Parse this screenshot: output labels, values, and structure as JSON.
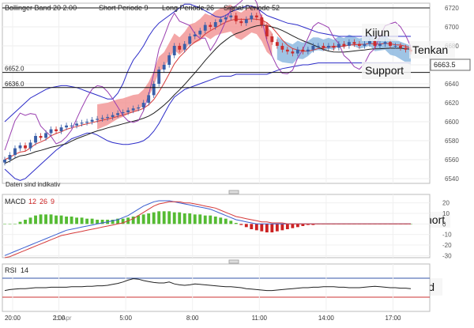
{
  "main_panel": {
    "header": {
      "bb": "Bollinger Band 20 2.00",
      "short": "Short Periode 9",
      "long": "Long Periode 26",
      "signal": "Signal Periode 52"
    },
    "note": "Daten sind indikativ",
    "current_price": "6663.5",
    "level_labels": [
      "6652.0",
      "6636.0"
    ]
  },
  "macd_panel": {
    "title": "MACD",
    "params": [
      "12",
      "26",
      "9"
    ]
  },
  "rsi_panel": {
    "title": "RSI",
    "period": "14"
  },
  "annotations": {
    "kijun": "Kijun",
    "tenkan": "Tenkan",
    "support": "Support",
    "short": "short",
    "trend": "Trend"
  },
  "x_axis": {
    "date_label": "11 Apr",
    "ticks": [
      "2:00",
      "5:00",
      "8:00",
      "11:00",
      "14:00",
      "17:00",
      "20:00"
    ]
  },
  "colors": {
    "bull": "#3a5fa8",
    "bear": "#cc2d2d",
    "cloud_bull": "#f08a8a",
    "cloud_bear": "#7fb0dc",
    "bollinger": "#2b2bc8",
    "ma_short": "#d63a3a",
    "ma_long": "#222222",
    "signal": "#9a3fb0",
    "macd_line": "#3a5fd0",
    "macd_signal": "#d63a3a",
    "rsi_line": "#222222",
    "rsi_band": "#cc3333"
  },
  "chart_data": [
    {
      "type": "candlestick",
      "ylim": [
        6535,
        6725
      ],
      "yticks": [
        6540,
        6560,
        6580,
        6600,
        6620,
        6640,
        6660,
        6680,
        6700,
        6720
      ],
      "levels": [
        6652,
        6636
      ],
      "x": [
        1,
        2,
        3,
        4,
        5,
        6,
        7,
        8,
        9,
        10,
        11,
        12,
        13,
        14,
        15,
        16,
        17,
        18,
        19,
        20,
        21,
        22,
        23,
        24,
        25,
        26,
        27,
        28,
        29,
        30,
        31,
        32,
        33,
        34,
        35,
        36,
        37,
        38,
        39,
        40,
        41,
        42,
        43,
        44,
        45,
        46,
        47,
        48,
        49,
        50,
        51,
        52,
        53,
        54,
        55,
        56,
        57,
        58,
        59,
        60,
        61,
        62,
        63,
        64,
        65,
        66,
        67,
        68,
        69,
        70,
        71,
        72,
        73,
        74,
        75,
        76,
        77,
        78,
        79,
        80
      ],
      "close": [
        6560,
        6565,
        6572,
        6575,
        6572,
        6578,
        6585,
        6583,
        6588,
        6592,
        6590,
        6594,
        6596,
        6596,
        6598,
        6599,
        6600,
        6602,
        6603,
        6604,
        6605,
        6607,
        6609,
        6610,
        6612,
        6614,
        6615,
        6620,
        6628,
        6640,
        6655,
        6660,
        6670,
        6680,
        6676,
        6682,
        6690,
        6692,
        6696,
        6702,
        6700,
        6705,
        6708,
        6710,
        6712,
        6706,
        6704,
        6708,
        6712,
        6710,
        6702,
        6690,
        6684,
        6680,
        6676,
        6674,
        6672,
        6676,
        6674,
        6676,
        6680,
        6680,
        6678,
        6680,
        6678,
        6682,
        6680,
        6684,
        6682,
        6680,
        6682,
        6685,
        6680,
        6682,
        6684,
        6680,
        6680,
        6678,
        6676,
        6674
      ],
      "bollinger_upper": [
        6600,
        6605,
        6610,
        6615,
        6620,
        6625,
        6628,
        6631,
        6634,
        6636,
        6637,
        6638,
        6638,
        6637,
        6636,
        6634,
        6632,
        6630,
        6628,
        6626,
        6624,
        6624,
        6630,
        6640,
        6654,
        6665,
        6672,
        6680,
        6690,
        6698,
        6704,
        6708,
        6712,
        6716,
        6720,
        6724,
        6724,
        6722,
        6720,
        6717,
        6714,
        6711,
        6710,
        6712,
        6716,
        6718,
        6720,
        6722,
        6722,
        6720,
        6716,
        6712,
        6710,
        6708,
        6706,
        6704,
        6703,
        6702,
        6700,
        6698,
        6696,
        6694,
        6693,
        6692,
        6691,
        6690,
        6690,
        6690,
        6690,
        6690,
        6690,
        6690,
        6690,
        6690,
        6690,
        6690,
        6690,
        6690,
        6690,
        6690
      ],
      "bollinger_lower": [
        6550,
        6545,
        6540,
        6538,
        6540,
        6545,
        6550,
        6555,
        6560,
        6565,
        6570,
        6574,
        6578,
        6582,
        6584,
        6586,
        6588,
        6588,
        6586,
        6583,
        6580,
        6578,
        6577,
        6576,
        6576,
        6577,
        6578,
        6580,
        6584,
        6590,
        6598,
        6608,
        6618,
        6626,
        6630,
        6634,
        6636,
        6638,
        6640,
        6642,
        6644,
        6646,
        6648,
        6648,
        6648,
        6650,
        6650,
        6650,
        6650,
        6650,
        6650,
        6650,
        6652,
        6654,
        6656,
        6657,
        6658,
        6659,
        6660,
        6660,
        6661,
        6662,
        6662,
        6662,
        6662,
        6662,
        6662,
        6662,
        6662,
        6662,
        6662,
        6662,
        6662,
        6662,
        6662,
        6662,
        6662,
        6662,
        6662,
        6662
      ]
    },
    {
      "type": "bar",
      "ylim": [
        -32,
        28
      ],
      "yticks": [
        -30,
        -20,
        -10,
        0,
        10,
        20
      ],
      "values": [
        0,
        0,
        0,
        2,
        4,
        6,
        8,
        9,
        9,
        9,
        8,
        8,
        7,
        7,
        6,
        6,
        5,
        5,
        4,
        4,
        4,
        4,
        5,
        5,
        6,
        7,
        8,
        9,
        10,
        11,
        12,
        12,
        12,
        11,
        11,
        10,
        10,
        9,
        9,
        8,
        8,
        7,
        6,
        5,
        3,
        1,
        -1,
        -3,
        -5,
        -6,
        -7,
        -8,
        -8,
        -7,
        -6,
        -5,
        -4,
        -3,
        -2,
        -1,
        -1,
        0,
        0,
        0,
        0,
        0,
        0,
        0,
        0,
        0,
        0,
        0,
        0,
        0,
        0,
        0,
        0,
        0,
        0,
        0
      ],
      "macd_line": [
        -30,
        -28,
        -26,
        -24,
        -22,
        -20,
        -18,
        -16,
        -14,
        -12,
        -10,
        -8,
        -6,
        -5,
        -4,
        -3,
        -2,
        -1,
        0,
        1,
        2,
        3,
        4,
        6,
        8,
        11,
        14,
        17,
        19,
        21,
        22,
        22,
        22,
        21,
        20,
        19,
        18,
        17,
        16,
        15,
        14,
        12,
        10,
        8,
        6,
        4,
        3,
        2,
        1,
        0,
        0,
        0,
        0,
        0,
        0,
        0,
        0,
        0,
        0,
        0,
        0,
        0,
        0,
        0,
        0,
        0,
        0,
        0,
        0,
        0,
        0,
        0,
        0,
        0,
        0,
        0,
        0,
        0,
        0,
        0
      ],
      "signal_line": [
        -32,
        -31,
        -29,
        -27,
        -25,
        -23,
        -21,
        -19,
        -17,
        -15,
        -13,
        -11,
        -10,
        -9,
        -8,
        -7,
        -6,
        -5,
        -4,
        -3,
        -2,
        -1,
        0,
        1,
        3,
        5,
        8,
        11,
        14,
        17,
        19,
        20,
        21,
        21,
        21,
        20,
        20,
        19,
        18,
        17,
        16,
        15,
        13,
        11,
        9,
        7,
        6,
        5,
        4,
        3,
        2,
        2,
        1,
        1,
        1,
        0,
        0,
        0,
        0,
        0,
        0,
        0,
        0,
        0,
        0,
        0,
        0,
        0,
        0,
        0,
        0,
        0,
        0,
        0,
        0,
        0,
        0,
        0,
        0,
        0
      ]
    },
    {
      "type": "line",
      "ylim": [
        0,
        100
      ],
      "bands": [
        70,
        30
      ],
      "values": [
        44,
        46,
        47,
        48,
        48,
        49,
        50,
        50,
        50,
        51,
        51,
        51,
        51,
        52,
        52,
        52,
        53,
        53,
        54,
        54,
        55,
        57,
        59,
        62,
        66,
        69,
        68,
        65,
        63,
        61,
        60,
        60,
        62,
        58,
        56,
        55,
        56,
        58,
        57,
        56,
        55,
        54,
        53,
        52,
        52,
        51,
        50,
        48,
        47,
        46,
        45,
        44,
        44,
        45,
        46,
        47,
        48,
        49,
        50,
        50,
        51,
        51,
        52,
        52,
        52,
        51,
        51,
        50,
        50,
        50,
        51,
        52,
        53,
        52,
        51,
        50,
        50,
        49,
        49,
        48
      ]
    }
  ]
}
